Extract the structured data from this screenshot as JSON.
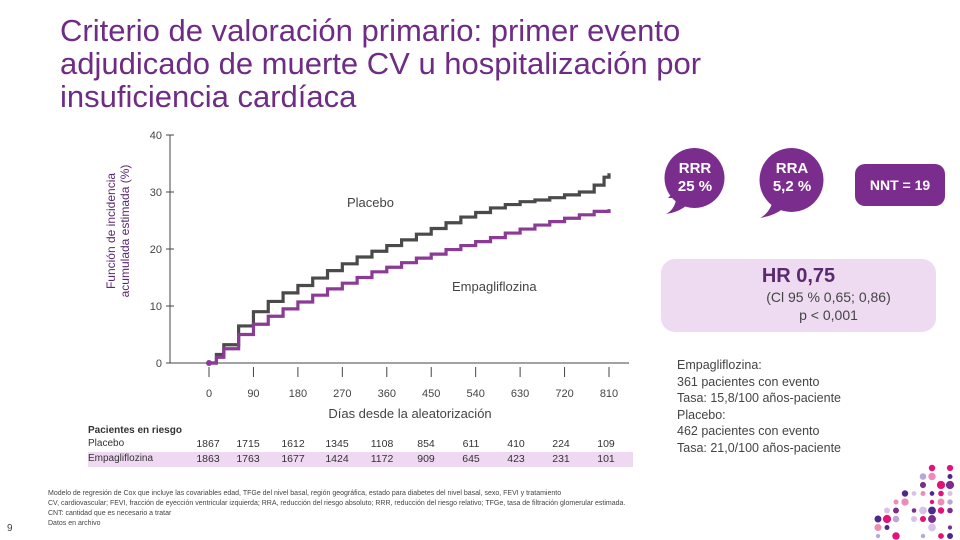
{
  "title": {
    "line1": "Criterio de valoración primario: primer evento",
    "line2": "adjudicado de muerte CV u hospitalización por",
    "line3": "insuficiencia cardíaca"
  },
  "chart_data": {
    "type": "line",
    "ylabel_line1": "Función de incidencia",
    "ylabel_line2": "acumulada estimada (%)",
    "xlabel": "Días desde la aleatorización",
    "ylim": [
      0,
      40
    ],
    "xlim": [
      0,
      810
    ],
    "yticks": [
      "0",
      "10",
      "20",
      "30",
      "40"
    ],
    "xticks": [
      "0",
      "90",
      "180",
      "270",
      "360",
      "450",
      "540",
      "630",
      "720",
      "810"
    ],
    "series": [
      {
        "name": "Placebo",
        "color": "#4a4a4a",
        "x": [
          0,
          15,
          30,
          60,
          90,
          120,
          150,
          180,
          210,
          240,
          270,
          300,
          330,
          360,
          390,
          420,
          450,
          480,
          510,
          540,
          570,
          600,
          630,
          660,
          690,
          720,
          750,
          780,
          800,
          810
        ],
        "y": [
          0,
          1.5,
          3.2,
          6.5,
          9.0,
          10.8,
          12.3,
          13.6,
          14.9,
          16.2,
          17.4,
          18.6,
          19.6,
          20.6,
          21.6,
          22.6,
          23.6,
          24.6,
          25.6,
          26.4,
          27.2,
          27.8,
          28.3,
          28.6,
          29.0,
          29.5,
          30.0,
          31.2,
          32.6,
          33.3
        ]
      },
      {
        "name": "Empagliflozina",
        "color": "#8b3a96",
        "x": [
          0,
          15,
          30,
          60,
          90,
          120,
          150,
          180,
          210,
          240,
          270,
          300,
          330,
          360,
          390,
          420,
          450,
          480,
          510,
          540,
          570,
          600,
          630,
          660,
          690,
          720,
          750,
          780,
          810
        ],
        "y": [
          0,
          1.0,
          2.5,
          5.0,
          6.8,
          8.2,
          9.5,
          10.7,
          11.9,
          13.0,
          14.0,
          15.0,
          16.0,
          16.8,
          17.6,
          18.4,
          19.1,
          19.9,
          20.6,
          21.3,
          22.0,
          22.8,
          23.5,
          24.2,
          24.8,
          25.4,
          26.0,
          26.6,
          27.0
        ]
      }
    ],
    "labels": {
      "placebo": "Placebo",
      "empagliflozina": "Empagliflozina"
    }
  },
  "stats": {
    "rrr_line1": "RRR",
    "rrr_line2": "25 %",
    "rra_line1": "RRA",
    "rra_line2": "5,2 %",
    "nnt": "NNT = 19",
    "hr": "HR 0,75",
    "ci": "(Cl 95 % 0,65; 0,86)",
    "p": "p < 0,001",
    "colors": {
      "dark_purple": "#7b2d8e",
      "light_purple": "#eedbf2"
    }
  },
  "events": [
    "Empagliflozina:",
    "361 pacientes con evento",
    "Tasa: 15,8/100 años-paciente",
    "Placebo:",
    "462 pacientes con evento",
    "Tasa: 21,0/100 años-paciente"
  ],
  "risk_table": {
    "header": "Pacientes en riesgo",
    "placebo_label": "Placebo",
    "empa_label": "Empagliflozina",
    "placebo": [
      "1867",
      "1715",
      "1612",
      "1345",
      "1108",
      "854",
      "611",
      "410",
      "224",
      "109"
    ],
    "empa": [
      "1863",
      "1763",
      "1677",
      "1424",
      "1172",
      "909",
      "645",
      "423",
      "231",
      "101"
    ]
  },
  "footnotes": [
    "Modelo de regresión de Cox que incluye las covariables edad, TFGe del nivel basal, región geográfica, estado para diabetes del nivel basal, sexo, FEVI y tratamiento",
    "CV, cardiovascular; FEVI, fracción de eyección ventricular izquierda; RRA, reducción del riesgo absoluto; RRR, reducción del riesgo relativo; TFGe, tasa de filtración glomerular estimada.",
    "CNT: cantidad que es necesario a tratar",
    "Datos en archivo"
  ],
  "page_number": "9"
}
